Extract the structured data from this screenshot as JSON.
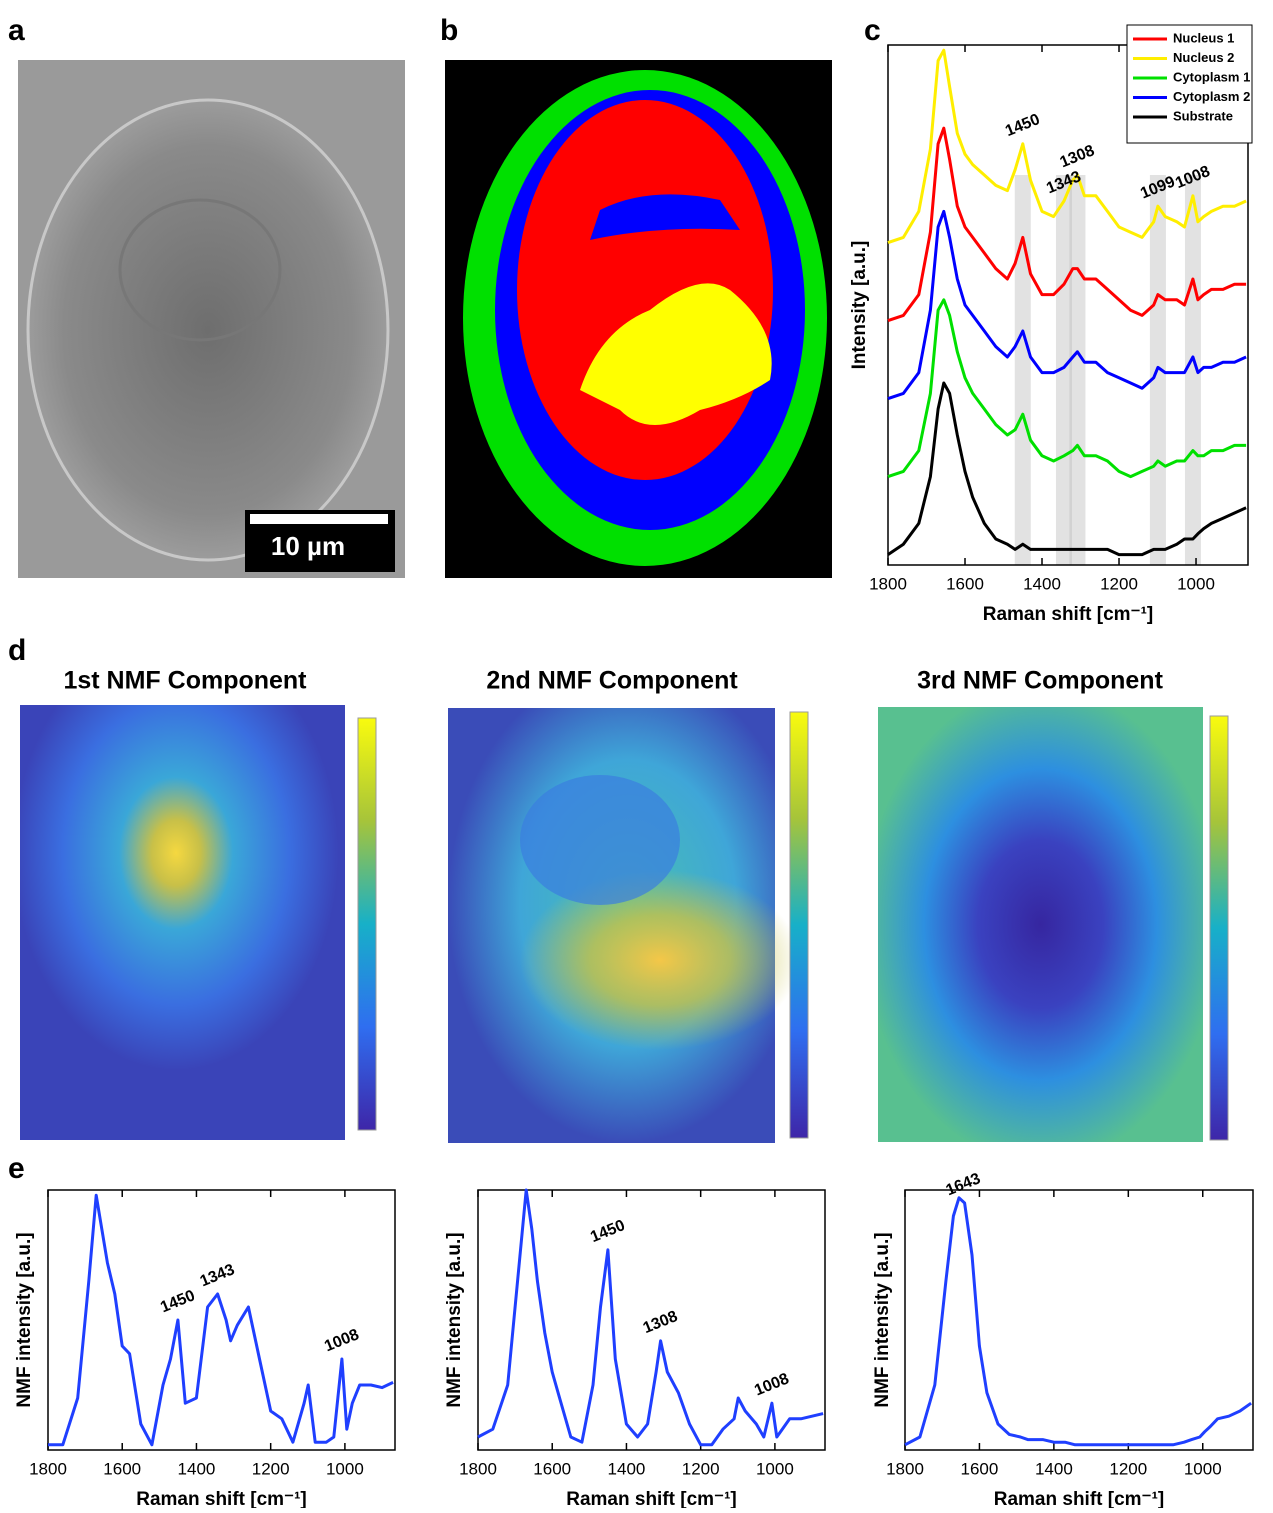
{
  "figure": {
    "panel_labels": [
      "a",
      "b",
      "c",
      "d",
      "e"
    ],
    "scale_bar": "10 µm",
    "nmf_titles": [
      "1st NMF Component",
      "2nd NMF Component",
      "3rd NMF Component"
    ]
  },
  "chart_data": [
    {
      "type": "line",
      "x_label": "Raman shift [cm⁻¹]",
      "y_label": "Intensity [a.u.]",
      "legend": true,
      "legend_position": "upper right",
      "x": [
        1800,
        1760,
        1720,
        1690,
        1670,
        1655,
        1640,
        1620,
        1600,
        1580,
        1550,
        1520,
        1490,
        1470,
        1450,
        1430,
        1400,
        1370,
        1343,
        1320,
        1308,
        1290,
        1260,
        1230,
        1200,
        1170,
        1140,
        1110,
        1099,
        1080,
        1050,
        1030,
        1008,
        995,
        980,
        960,
        930,
        900,
        870
      ],
      "xlim": [
        1800,
        865
      ],
      "xticks": [
        1800,
        1600,
        1400,
        1200,
        1000
      ],
      "ylim": [
        0,
        100
      ],
      "series": [
        {
          "name": "Nucleus 1",
          "color": "#ff0000",
          "values": [
            47,
            48,
            52,
            64,
            81,
            84,
            78,
            69,
            65,
            63,
            60,
            57,
            55,
            58,
            63,
            56,
            52,
            52,
            54,
            57,
            57,
            55,
            55,
            53,
            51,
            49,
            48,
            50,
            52,
            51,
            51,
            50,
            55,
            51,
            52,
            53,
            53,
            54,
            54
          ]
        },
        {
          "name": "Nucleus 2",
          "color": "#ffee00",
          "values": [
            62,
            63,
            68,
            80,
            97,
            99,
            92,
            83,
            79,
            77,
            75,
            73,
            72,
            76,
            81,
            74,
            68,
            67,
            70,
            74,
            75,
            71,
            71,
            68,
            65,
            64,
            63,
            66,
            69,
            67,
            66,
            65,
            71,
            66,
            67,
            68,
            69,
            69,
            70
          ]
        },
        {
          "name": "Cytoplasm 1",
          "color": "#00e000",
          "values": [
            17,
            18,
            22,
            33,
            49,
            51,
            48,
            41,
            36,
            33,
            30,
            27,
            25,
            26,
            29,
            24,
            21,
            20,
            21,
            22,
            23,
            21,
            21,
            20,
            18,
            17,
            18,
            19,
            20,
            19,
            20,
            20,
            22,
            21,
            21,
            22,
            22,
            23,
            23
          ]
        },
        {
          "name": "Cytoplasm 2",
          "color": "#0000ff",
          "values": [
            32,
            33,
            37,
            49,
            65,
            68,
            63,
            55,
            50,
            48,
            45,
            42,
            40,
            42,
            45,
            40,
            37,
            37,
            38,
            40,
            41,
            39,
            39,
            37,
            36,
            35,
            34,
            36,
            38,
            37,
            37,
            37,
            40,
            37,
            38,
            38,
            39,
            39,
            40
          ]
        },
        {
          "name": "Substrate",
          "color": "#000000",
          "values": [
            2,
            4,
            8,
            17,
            30,
            35,
            33,
            25,
            18,
            13,
            8,
            5,
            4,
            3,
            4,
            3,
            3,
            3,
            3,
            3,
            3,
            3,
            3,
            3,
            2,
            2,
            2,
            3,
            3,
            3,
            4,
            5,
            5,
            6,
            7,
            8,
            9,
            10,
            11
          ]
        }
      ],
      "annotations": [
        {
          "label": "1450",
          "x": 1450
        },
        {
          "label": "1343",
          "x": 1343
        },
        {
          "label": "1308",
          "x": 1308
        },
        {
          "label": "1099",
          "x": 1099
        },
        {
          "label": "1008",
          "x": 1008
        }
      ]
    },
    {
      "type": "line",
      "x_label": "Raman shift [cm⁻¹]",
      "y_label": "NMF intensity [a.u.]",
      "x": [
        1800,
        1760,
        1720,
        1690,
        1670,
        1655,
        1640,
        1620,
        1600,
        1580,
        1550,
        1520,
        1490,
        1470,
        1450,
        1430,
        1400,
        1370,
        1343,
        1320,
        1308,
        1290,
        1260,
        1230,
        1200,
        1170,
        1140,
        1110,
        1099,
        1080,
        1050,
        1030,
        1008,
        995,
        980,
        960,
        930,
        900,
        870
      ],
      "xlim": [
        1800,
        865
      ],
      "xticks": [
        1800,
        1600,
        1400,
        1200,
        1000
      ],
      "ylim": [
        0,
        100
      ],
      "series": [
        {
          "color": "#1f3fff",
          "values": [
            2,
            2,
            20,
            65,
            98,
            85,
            72,
            60,
            40,
            37,
            10,
            2,
            25,
            35,
            50,
            18,
            20,
            55,
            60,
            50,
            42,
            48,
            55,
            35,
            15,
            12,
            3,
            18,
            25,
            3,
            3,
            5,
            35,
            8,
            18,
            25,
            25,
            24,
            26
          ]
        }
      ],
      "annotations": [
        {
          "label": "1450",
          "x": 1450
        },
        {
          "label": "1343",
          "x": 1343
        },
        {
          "label": "1008",
          "x": 1008
        }
      ]
    },
    {
      "type": "line",
      "x_label": "Raman shift [cm⁻¹]",
      "y_label": "NMF intensity [a.u.]",
      "x": [
        1800,
        1760,
        1720,
        1690,
        1670,
        1655,
        1640,
        1620,
        1600,
        1580,
        1550,
        1520,
        1490,
        1470,
        1450,
        1430,
        1400,
        1370,
        1343,
        1320,
        1308,
        1290,
        1260,
        1230,
        1200,
        1170,
        1140,
        1110,
        1099,
        1080,
        1050,
        1030,
        1008,
        995,
        980,
        960,
        930,
        900,
        870
      ],
      "xlim": [
        1800,
        865
      ],
      "xticks": [
        1800,
        1600,
        1400,
        1200,
        1000
      ],
      "ylim": [
        0,
        100
      ],
      "series": [
        {
          "color": "#1f3fff",
          "values": [
            5,
            8,
            25,
            70,
            100,
            85,
            65,
            45,
            30,
            20,
            5,
            3,
            25,
            55,
            77,
            35,
            10,
            5,
            10,
            30,
            42,
            30,
            22,
            10,
            2,
            2,
            8,
            12,
            20,
            15,
            10,
            5,
            18,
            5,
            8,
            12,
            12,
            13,
            14
          ]
        }
      ],
      "annotations": [
        {
          "label": "1450",
          "x": 1450
        },
        {
          "label": "1308",
          "x": 1308
        },
        {
          "label": "1008",
          "x": 1008
        }
      ]
    },
    {
      "type": "line",
      "x_label": "Raman shift [cm⁻¹]",
      "y_label": "NMF intensity [a.u.]",
      "x": [
        1800,
        1760,
        1720,
        1690,
        1670,
        1655,
        1640,
        1620,
        1600,
        1580,
        1550,
        1520,
        1490,
        1470,
        1450,
        1430,
        1400,
        1370,
        1343,
        1320,
        1308,
        1290,
        1260,
        1230,
        1200,
        1170,
        1140,
        1110,
        1099,
        1080,
        1050,
        1030,
        1008,
        995,
        980,
        960,
        930,
        900,
        870
      ],
      "xlim": [
        1800,
        865
      ],
      "xticks": [
        1800,
        1600,
        1400,
        1200,
        1000
      ],
      "ylim": [
        0,
        100
      ],
      "series": [
        {
          "color": "#1f3fff",
          "values": [
            2,
            5,
            25,
            65,
            90,
            97,
            95,
            75,
            40,
            22,
            10,
            6,
            5,
            4,
            4,
            4,
            3,
            3,
            2,
            2,
            2,
            2,
            2,
            2,
            2,
            2,
            2,
            2,
            2,
            2,
            3,
            4,
            5,
            7,
            9,
            12,
            13,
            15,
            18
          ]
        }
      ],
      "annotations": [
        {
          "label": "1643",
          "x": 1643
        }
      ]
    }
  ]
}
